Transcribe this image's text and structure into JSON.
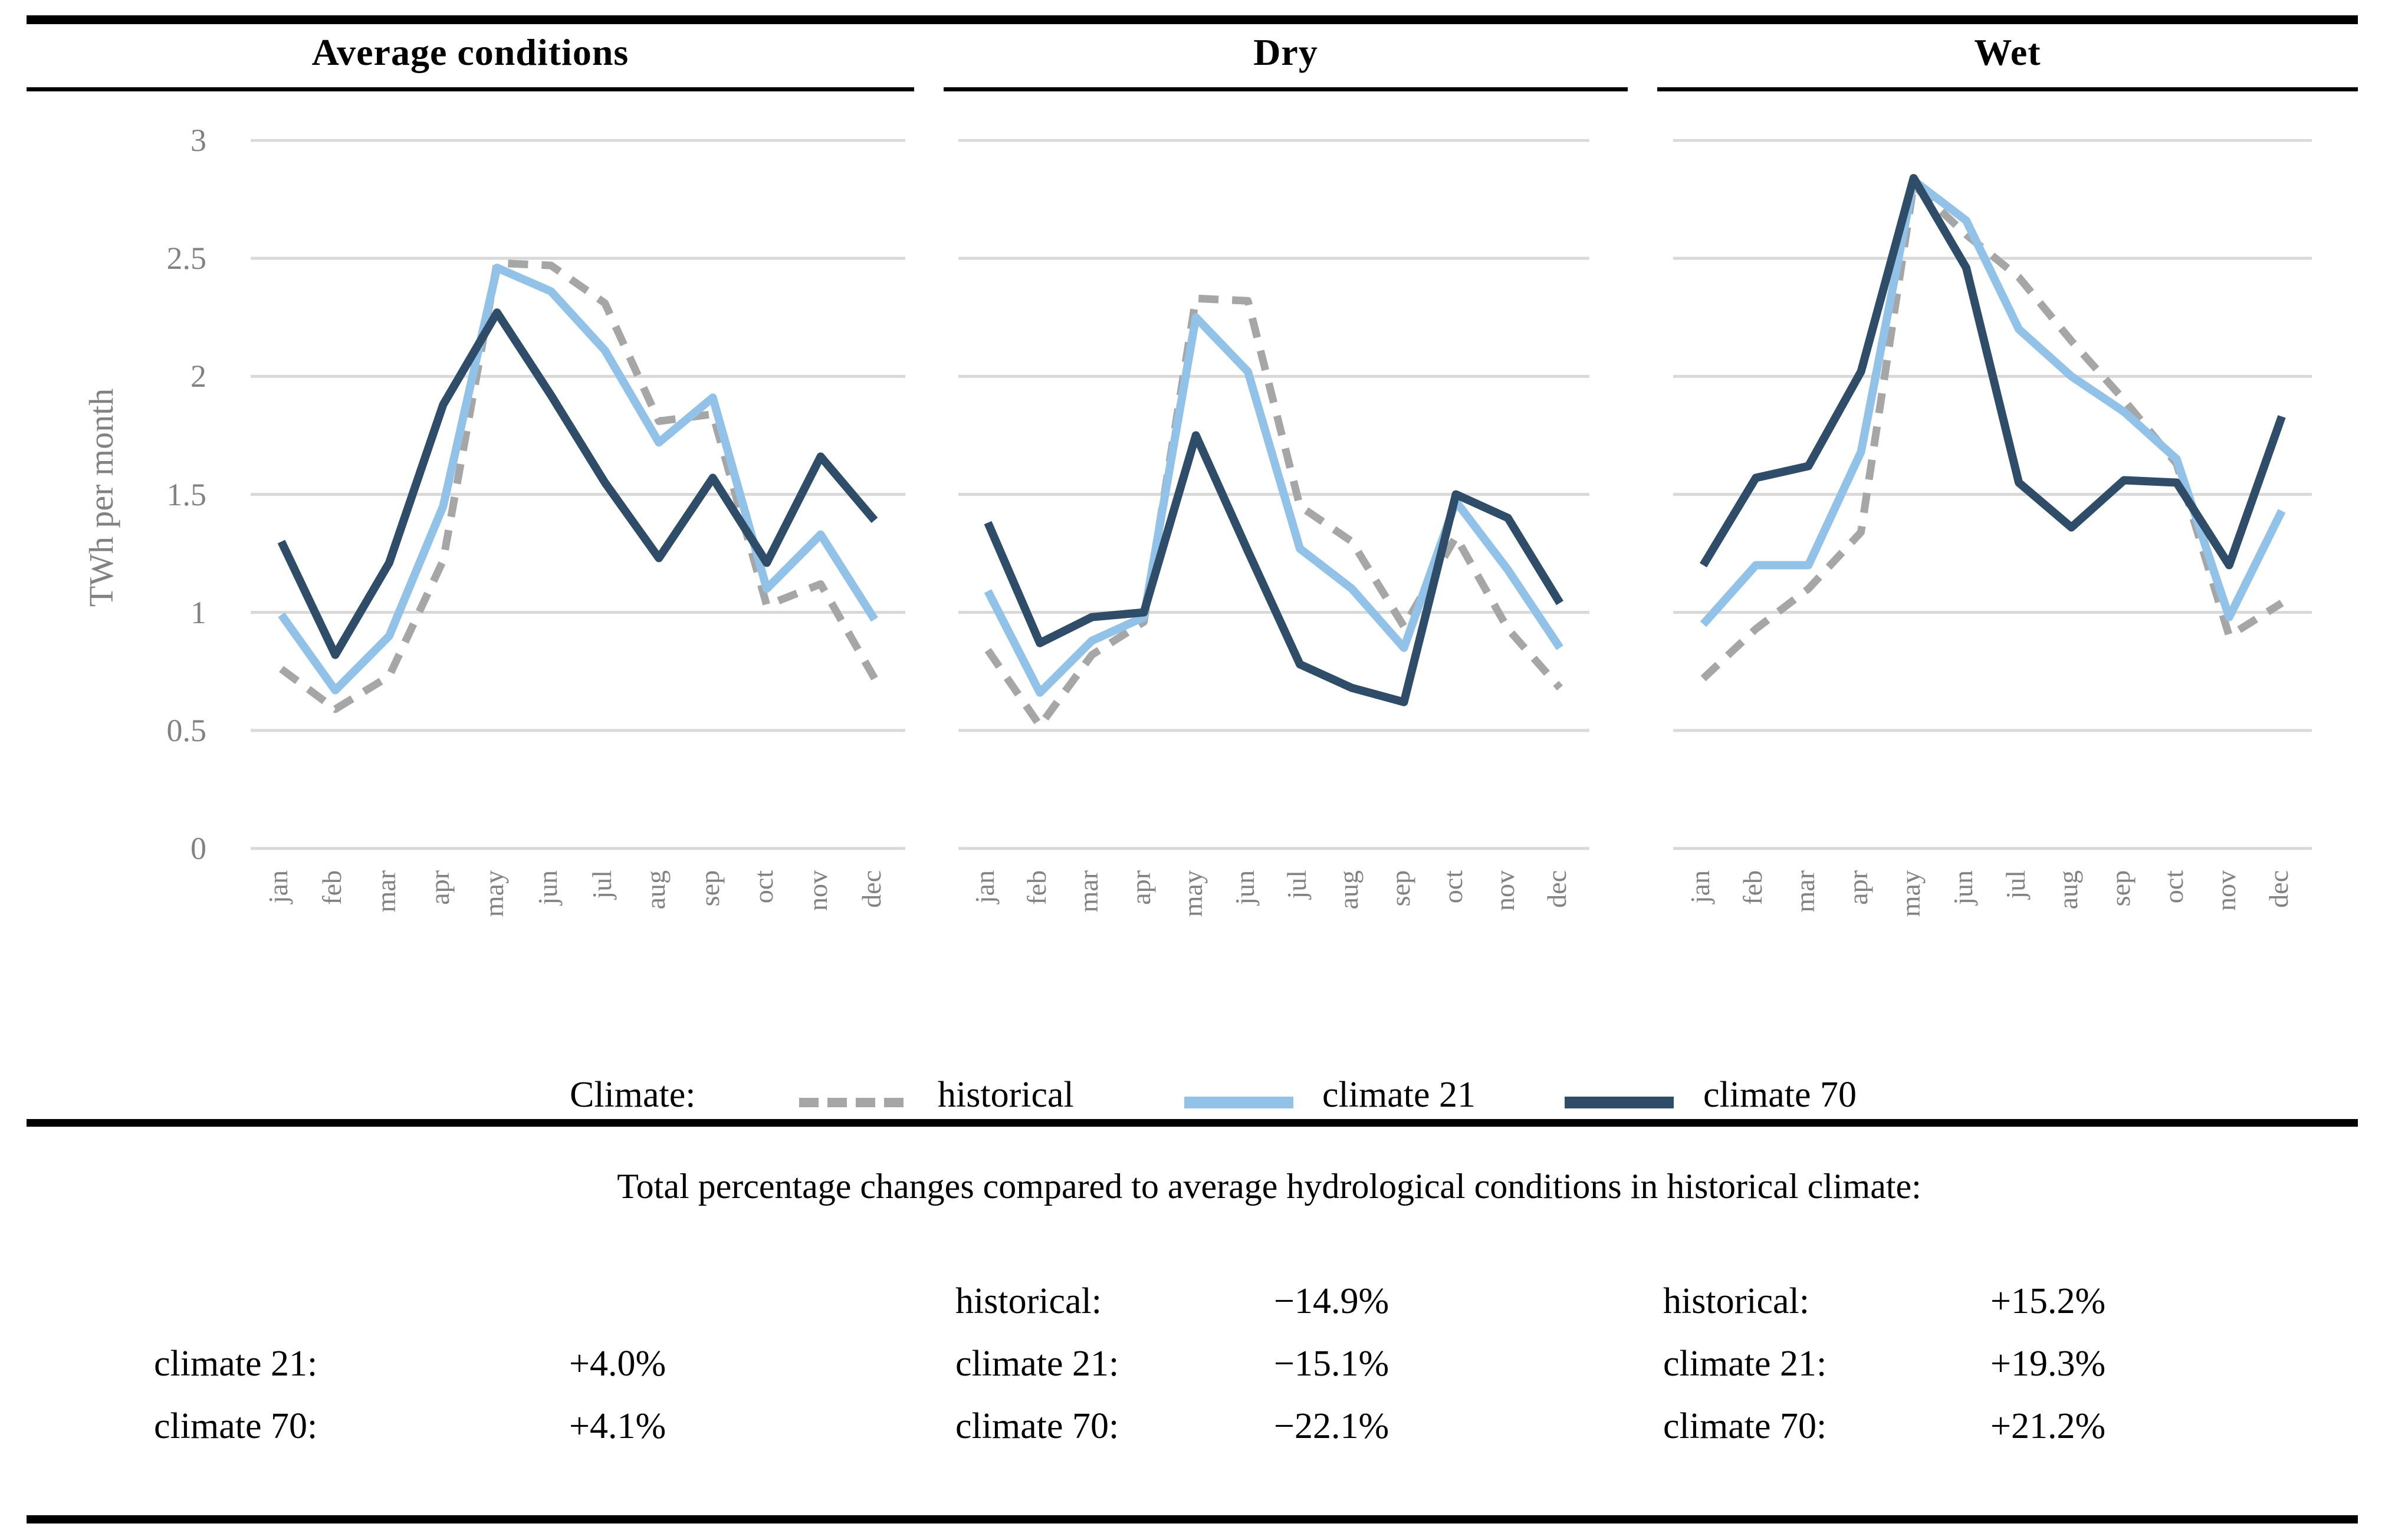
{
  "titles": [
    "Average conditions",
    "Dry",
    "Wet"
  ],
  "axis": {
    "y_label": "TWh per month",
    "y_ticks": [
      "3",
      "2.5",
      "2",
      "1.5",
      "1",
      "0.5",
      "0"
    ],
    "months": [
      "jan",
      "feb",
      "mar",
      "apr",
      "may",
      "jun",
      "jul",
      "aug",
      "sep",
      "oct",
      "nov",
      "dec"
    ]
  },
  "legend": {
    "label": "Climate:",
    "entries": [
      {
        "name": "historical",
        "style": "dashed",
        "color": "#A6A6A6"
      },
      {
        "name": "climate 21",
        "style": "solid",
        "color": "#92C2E8"
      },
      {
        "name": "climate 70",
        "style": "solid",
        "color": "#2F4D68"
      }
    ]
  },
  "colors": {
    "gridline": "#D9D9D9",
    "axis_text": "#828282",
    "rule": "#000000"
  },
  "chart_data": [
    {
      "type": "line",
      "title": "Average conditions",
      "x": [
        "jan",
        "feb",
        "mar",
        "apr",
        "may",
        "jun",
        "jul",
        "aug",
        "sep",
        "oct",
        "nov",
        "dec"
      ],
      "ylabel": "TWh per month",
      "ylim": [
        0,
        3
      ],
      "yticks": [
        0,
        0.5,
        1,
        1.5,
        2,
        2.5,
        3
      ],
      "grid": true,
      "legend_position": "bottom",
      "series": [
        {
          "name": "historical",
          "style": "dashed",
          "color": "#A6A6A6",
          "values": [
            0.76,
            0.59,
            0.73,
            1.22,
            2.48,
            2.47,
            2.31,
            1.81,
            1.84,
            1.03,
            1.12,
            0.72
          ]
        },
        {
          "name": "climate 21",
          "style": "solid",
          "color": "#92C2E8",
          "values": [
            0.99,
            0.67,
            0.9,
            1.45,
            2.46,
            2.36,
            2.11,
            1.72,
            1.91,
            1.1,
            1.33,
            0.97
          ]
        },
        {
          "name": "climate 70",
          "style": "solid",
          "color": "#2F4D68",
          "values": [
            1.3,
            0.82,
            1.21,
            1.88,
            2.27,
            1.92,
            1.55,
            1.23,
            1.57,
            1.21,
            1.66,
            1.39
          ]
        }
      ]
    },
    {
      "type": "line",
      "title": "Dry",
      "x": [
        "jan",
        "feb",
        "mar",
        "apr",
        "may",
        "jun",
        "jul",
        "aug",
        "sep",
        "oct",
        "nov",
        "dec"
      ],
      "ylabel": "TWh per month",
      "ylim": [
        0,
        3
      ],
      "yticks": [
        0,
        0.5,
        1,
        1.5,
        2,
        2.5,
        3
      ],
      "grid": true,
      "legend_position": "bottom",
      "series": [
        {
          "name": "historical",
          "style": "dashed",
          "color": "#A6A6A6",
          "values": [
            0.84,
            0.52,
            0.82,
            0.96,
            2.33,
            2.32,
            1.45,
            1.3,
            0.94,
            1.32,
            0.93,
            0.68
          ]
        },
        {
          "name": "climate 21",
          "style": "solid",
          "color": "#92C2E8",
          "values": [
            1.09,
            0.66,
            0.88,
            0.98,
            2.25,
            2.02,
            1.27,
            1.1,
            0.85,
            1.47,
            1.18,
            0.85
          ]
        },
        {
          "name": "climate 70",
          "style": "solid",
          "color": "#2F4D68",
          "values": [
            1.38,
            0.87,
            0.98,
            1.0,
            1.75,
            1.26,
            0.78,
            0.68,
            0.62,
            1.5,
            1.4,
            1.04
          ]
        }
      ]
    },
    {
      "type": "line",
      "title": "Wet",
      "x": [
        "jan",
        "feb",
        "mar",
        "apr",
        "may",
        "jun",
        "jul",
        "aug",
        "sep",
        "oct",
        "nov",
        "dec"
      ],
      "ylabel": "TWh per month",
      "ylim": [
        0,
        3
      ],
      "yticks": [
        0,
        0.5,
        1,
        1.5,
        2,
        2.5,
        3
      ],
      "grid": true,
      "legend_position": "bottom",
      "series": [
        {
          "name": "historical",
          "style": "dashed",
          "color": "#A6A6A6",
          "values": [
            0.72,
            0.93,
            1.1,
            1.34,
            2.81,
            2.6,
            2.42,
            2.15,
            1.9,
            1.63,
            0.9,
            1.04
          ]
        },
        {
          "name": "climate 21",
          "style": "solid",
          "color": "#92C2E8",
          "values": [
            0.95,
            1.2,
            1.2,
            1.68,
            2.83,
            2.66,
            2.2,
            2.0,
            1.85,
            1.65,
            0.98,
            1.43
          ]
        },
        {
          "name": "climate 70",
          "style": "solid",
          "color": "#2F4D68",
          "values": [
            1.2,
            1.57,
            1.62,
            2.02,
            2.84,
            2.46,
            1.55,
            1.36,
            1.56,
            1.55,
            1.2,
            1.83
          ]
        }
      ]
    }
  ],
  "summary": {
    "heading": "Total percentage changes compared to average hydrological conditions in historical climate:",
    "row_slots": [
      "historical:",
      "climate 21:",
      "climate 70:"
    ],
    "columns": [
      {
        "rows": [
          {
            "slot": 1,
            "label": "climate 21:",
            "value": "+4.0%"
          },
          {
            "slot": 2,
            "label": "climate 70:",
            "value": "+4.1%"
          }
        ]
      },
      {
        "rows": [
          {
            "slot": 0,
            "label": "historical:",
            "value": "−14.9%"
          },
          {
            "slot": 1,
            "label": "climate 21:",
            "value": "−15.1%"
          },
          {
            "slot": 2,
            "label": "climate 70:",
            "value": "−22.1%"
          }
        ]
      },
      {
        "rows": [
          {
            "slot": 0,
            "label": "historical:",
            "value": "+15.2%"
          },
          {
            "slot": 1,
            "label": "climate 21:",
            "value": "+19.3%"
          },
          {
            "slot": 2,
            "label": "climate 70:",
            "value": "+21.2%"
          }
        ]
      }
    ]
  }
}
